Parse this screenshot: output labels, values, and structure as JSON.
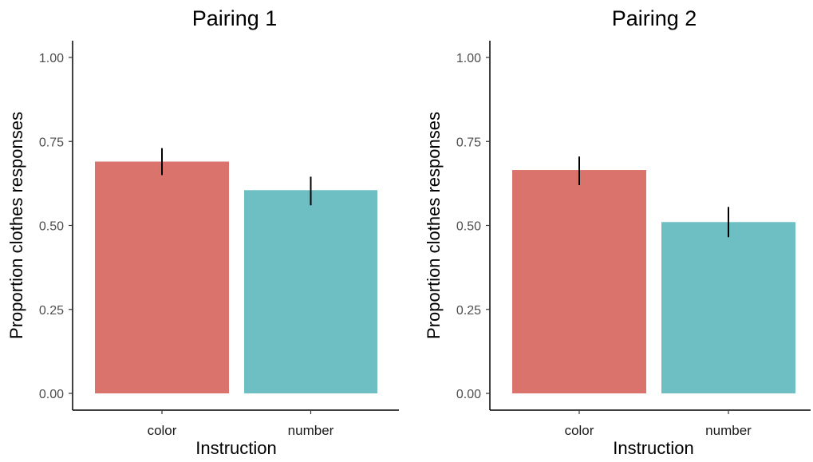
{
  "chart_data": [
    {
      "type": "bar",
      "title": "Pairing 1",
      "xlabel": "Instruction",
      "ylabel": "Proportion clothes responses",
      "categories": [
        "color",
        "number"
      ],
      "values": [
        0.69,
        0.605
      ],
      "error_bars": [
        [
          0.65,
          0.73
        ],
        [
          0.56,
          0.645
        ]
      ],
      "colors": [
        "#DA736C",
        "#6DBFC3"
      ],
      "ylim": [
        0,
        1
      ],
      "yticks": [
        "0.00",
        "0.25",
        "0.50",
        "0.75",
        "1.00"
      ],
      "grid": false,
      "legend": "none"
    },
    {
      "type": "bar",
      "title": "Pairing 2",
      "xlabel": "Instruction",
      "ylabel": "Proportion clothes responses",
      "categories": [
        "color",
        "number"
      ],
      "values": [
        0.665,
        0.51
      ],
      "error_bars": [
        [
          0.62,
          0.705
        ],
        [
          0.465,
          0.555
        ]
      ],
      "colors": [
        "#DA736C",
        "#6DBFC3"
      ],
      "ylim": [
        0,
        1
      ],
      "yticks": [
        "0.00",
        "0.25",
        "0.50",
        "0.75",
        "1.00"
      ],
      "grid": false,
      "legend": "none"
    }
  ]
}
